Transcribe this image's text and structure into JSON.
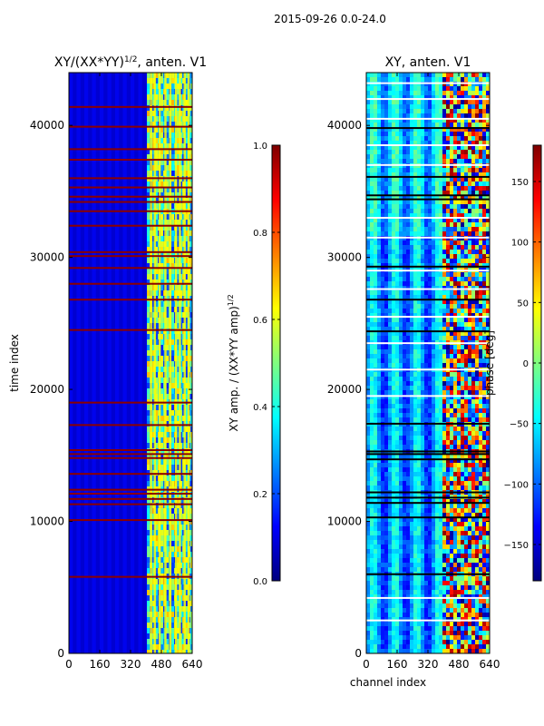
{
  "figure_title": "2015-09-26 0.0-24.0",
  "colors": {
    "jet_stops": [
      "#00007f",
      "#0000ff",
      "#007fff",
      "#00ffff",
      "#7fff7f",
      "#ffff00",
      "#ff7f00",
      "#ff0000",
      "#7f0000"
    ],
    "flag_line": "#8b0000",
    "gap_white": "#ffffff",
    "gap_black": "#000000"
  },
  "chart_data": [
    {
      "type": "heatmap",
      "id": "amp",
      "title": "XY/(XX*YY)",
      "title_sup": "1/2",
      "title_suffix": ", anten. V1",
      "xlabel": "",
      "ylabel": "time index",
      "xlim": [
        0,
        640
      ],
      "ylim": [
        0,
        44000
      ],
      "xticks": [
        0,
        160,
        320,
        480,
        640
      ],
      "xtick_labels": [
        "0",
        "160",
        "320",
        "480",
        "640"
      ],
      "yticks": [
        0,
        10000,
        20000,
        30000,
        40000
      ],
      "ytick_labels": [
        "0",
        "10000",
        "20000",
        "30000",
        "40000"
      ],
      "colorbar": {
        "label": "XY amp. / (XX*YY amp)",
        "label_sup": "1/2",
        "min": 0.0,
        "max": 1.0,
        "ticks": [
          0.0,
          0.2,
          0.4,
          0.6,
          0.8,
          1.0
        ],
        "tick_labels": [
          "0.0",
          "0.2",
          "0.4",
          "0.6",
          "0.8",
          "1.0"
        ]
      },
      "rfi_channel_start": 405,
      "bright_channel_columns": [
        425,
        445,
        470,
        500,
        525,
        555,
        575,
        600,
        620
      ],
      "flagged_rows": [
        5800,
        10100,
        11300,
        11700,
        12100,
        12400,
        13600,
        14800,
        15100,
        15400,
        17300,
        19000,
        24500,
        26800,
        28000,
        29200,
        30100,
        30400,
        32400,
        33500,
        34200,
        34600,
        35300,
        36000,
        37400,
        38200,
        39900,
        41400
      ]
    },
    {
      "type": "heatmap",
      "id": "phase",
      "title": "XY, anten. V1",
      "xlabel": "channel index",
      "ylabel": "",
      "xlim": [
        0,
        640
      ],
      "ylim": [
        0,
        44000
      ],
      "xticks": [
        0,
        160,
        320,
        480,
        640
      ],
      "xtick_labels": [
        "0",
        "160",
        "320",
        "480",
        "640"
      ],
      "yticks": [
        0,
        10000,
        20000,
        30000,
        40000
      ],
      "ytick_labels": [
        "0",
        "10000",
        "20000",
        "30000",
        "40000"
      ],
      "colorbar": {
        "label": "phase [deg]",
        "min": -180,
        "max": 180,
        "ticks": [
          -150,
          -100,
          -50,
          0,
          50,
          100,
          150
        ],
        "tick_labels": [
          "−150",
          "−100",
          "−50",
          "0",
          "50",
          "100",
          "150"
        ]
      },
      "rfi_channel_start": 390,
      "gap_rows_white": [
        2500,
        4200,
        19500,
        21500,
        23500,
        25500,
        27600,
        29000,
        31500,
        33000,
        37000,
        38500,
        40500,
        42000,
        43200
      ],
      "gap_rows_black": [
        6000,
        10300,
        11400,
        11800,
        12200,
        14700,
        15100,
        15300,
        17400,
        24400,
        26800,
        29300,
        34400,
        34700,
        36100,
        39800
      ]
    }
  ]
}
